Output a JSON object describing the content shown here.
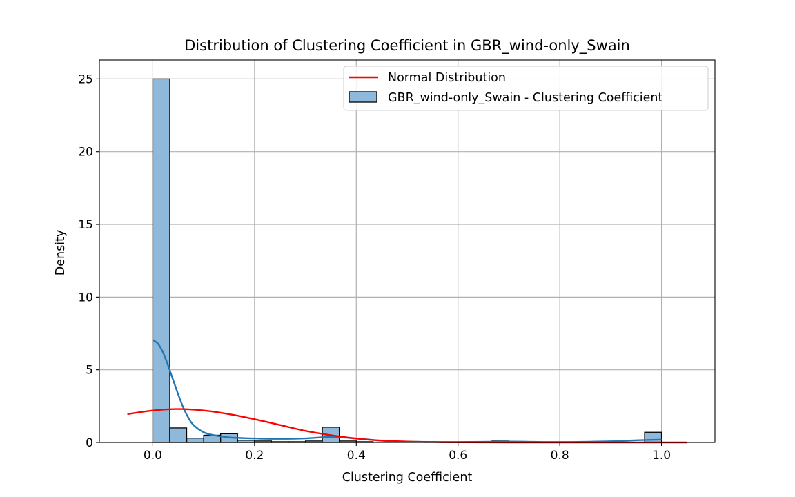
{
  "chart_data": {
    "type": "bar",
    "title": "Distribution of Clustering Coefficient in GBR_wind-only_Swain",
    "xlabel": "Clustering Coefficient",
    "ylabel": "Density",
    "xlim": [
      -0.105,
      1.105
    ],
    "ylim": [
      0,
      26.3
    ],
    "xticks": [
      0.0,
      0.2,
      0.4,
      0.6,
      0.8,
      1.0
    ],
    "xtick_labels": [
      "0.0",
      "0.2",
      "0.4",
      "0.6",
      "0.8",
      "1.0"
    ],
    "yticks": [
      0,
      5,
      10,
      15,
      20,
      25
    ],
    "ytick_labels": [
      "0",
      "5",
      "10",
      "15",
      "20",
      "25"
    ],
    "grid": true,
    "legend_position": "top-right",
    "legend": [
      {
        "label": "Normal Distribution",
        "kind": "line",
        "color": "#ff0000"
      },
      {
        "label": "GBR_wind-only_Swain - Clustering Coefficient",
        "kind": "patch",
        "color": "#8fb9da"
      }
    ],
    "histogram": {
      "name": "GBR_wind-only_Swain - Clustering Coefficient",
      "bin_width": 0.0333,
      "bins": [
        {
          "x0": 0.0,
          "density": 25.0
        },
        {
          "x0": 0.0333,
          "density": 1.0
        },
        {
          "x0": 0.0667,
          "density": 0.3
        },
        {
          "x0": 0.1,
          "density": 0.5
        },
        {
          "x0": 0.1333,
          "density": 0.6
        },
        {
          "x0": 0.1667,
          "density": 0.15
        },
        {
          "x0": 0.2,
          "density": 0.1
        },
        {
          "x0": 0.2333,
          "density": 0.05
        },
        {
          "x0": 0.2667,
          "density": 0.05
        },
        {
          "x0": 0.3,
          "density": 0.1
        },
        {
          "x0": 0.3333,
          "density": 1.05
        },
        {
          "x0": 0.3667,
          "density": 0.1
        },
        {
          "x0": 0.4,
          "density": 0.05
        },
        {
          "x0": 0.6667,
          "density": 0.1
        },
        {
          "x0": 0.9667,
          "density": 0.7
        }
      ]
    },
    "kde": {
      "color": "#1f77b4",
      "x": [
        0.0,
        0.01,
        0.02,
        0.03,
        0.04,
        0.05,
        0.06,
        0.07,
        0.08,
        0.1,
        0.12,
        0.15,
        0.18,
        0.2,
        0.25,
        0.3,
        0.35,
        0.4,
        0.45,
        0.5,
        0.6,
        0.7,
        0.8,
        0.9,
        0.95,
        1.0
      ],
      "y": [
        7.05,
        6.8,
        6.2,
        5.3,
        4.3,
        3.3,
        2.4,
        1.7,
        1.2,
        0.7,
        0.5,
        0.35,
        0.3,
        0.28,
        0.25,
        0.28,
        0.38,
        0.28,
        0.12,
        0.05,
        0.03,
        0.06,
        0.03,
        0.08,
        0.15,
        0.2
      ]
    },
    "normal_distribution": {
      "color": "#ff0000",
      "x": [
        -0.05,
        0.0,
        0.05,
        0.1,
        0.15,
        0.2,
        0.25,
        0.3,
        0.35,
        0.4,
        0.45,
        0.5,
        0.55,
        0.6,
        0.7,
        0.8,
        0.9,
        1.0,
        1.05
      ],
      "y": [
        1.95,
        2.2,
        2.3,
        2.2,
        1.95,
        1.6,
        1.2,
        0.8,
        0.5,
        0.27,
        0.13,
        0.06,
        0.025,
        0.01,
        0.0,
        0.0,
        0.0,
        0.0,
        0.0
      ]
    }
  },
  "colors": {
    "bar_fill": "#8fb9da",
    "bar_edge": "#000000",
    "grid": "#b0b0b0",
    "kde": "#1f77b4",
    "normal": "#ff0000"
  }
}
